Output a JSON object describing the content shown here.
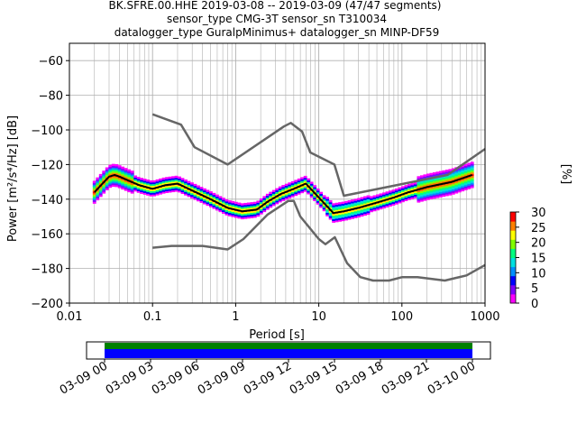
{
  "title": {
    "line1": "BK.SFRE.00.HHE   2019-03-08 -- 2019-03-09  (47/47 segments)",
    "line2": "sensor_type CMG-3T sensor_sn T310034",
    "line3": "datalogger_type GuralpMinimus+ datalogger_sn MINP-DF59"
  },
  "chart_data": {
    "type": "heatmap",
    "xlabel": "Period [s]",
    "ylabel": "Power [m²/s⁴/Hz] [dB]",
    "x_scale": "log",
    "xlim": [
      0.01,
      1000
    ],
    "ylim": [
      -200,
      -50
    ],
    "x_ticks": [
      "0.01",
      "0.1",
      "1",
      "10",
      "100",
      "1000"
    ],
    "y_ticks": [
      "−200",
      "−180",
      "−160",
      "−140",
      "−120",
      "−100",
      "−80",
      "−60"
    ],
    "grid": true,
    "colorbar": {
      "label": "[%]",
      "range": [
        0,
        30
      ],
      "ticks": [
        "0",
        "5",
        "10",
        "15",
        "20",
        "25",
        "30"
      ]
    },
    "series": [
      {
        "role": "mean",
        "color": "#000000",
        "x": [
          0.02,
          0.025,
          0.03,
          0.035,
          0.04,
          0.05,
          0.07,
          0.1,
          0.14,
          0.2,
          0.3,
          0.5,
          0.8,
          1.2,
          1.8,
          2.5,
          3.5,
          5,
          7,
          10,
          15,
          20,
          30,
          50,
          80,
          120,
          200,
          400,
          700
        ],
        "y": [
          -136,
          -131,
          -127,
          -126,
          -127,
          -129,
          -132,
          -134,
          -132,
          -131,
          -135,
          -140,
          -145,
          -147,
          -146,
          -141,
          -137,
          -134,
          -131,
          -139,
          -148,
          -147,
          -145,
          -142,
          -139,
          -136,
          -133,
          -130,
          -126
        ]
      },
      {
        "role": "high noise model",
        "color": "#666666",
        "x": [
          0.1,
          0.22,
          0.32,
          0.8,
          3.8,
          4.6,
          6.3,
          7.9,
          15.4,
          20,
          354.8,
          1000
        ],
        "y": [
          -91,
          -97,
          -110,
          -120,
          -98,
          -96,
          -101,
          -113,
          -120,
          -138,
          -126,
          -111
        ]
      },
      {
        "role": "low noise model",
        "color": "#666666",
        "x": [
          0.1,
          0.17,
          0.4,
          0.8,
          1.24,
          2.4,
          4.3,
          5,
          6,
          10,
          12,
          15.6,
          21.9,
          31.6,
          45,
          70,
          101,
          154,
          328,
          600,
          1000
        ],
        "y": [
          -168,
          -167,
          -167,
          -169,
          -163,
          -149,
          -141,
          -141,
          -150,
          -163,
          -166,
          -162,
          -177,
          -185,
          -187,
          -187,
          -185,
          -185,
          -187,
          -184,
          -178
        ]
      }
    ]
  },
  "availability": {
    "ticks": [
      "03-09 00",
      "03-09 03",
      "03-09 06",
      "03-09 09",
      "03-09 12",
      "03-09 15",
      "03-09 18",
      "03-09 21",
      "03-10 00"
    ],
    "bar_colors": [
      "#008000",
      "#0000ff"
    ]
  }
}
